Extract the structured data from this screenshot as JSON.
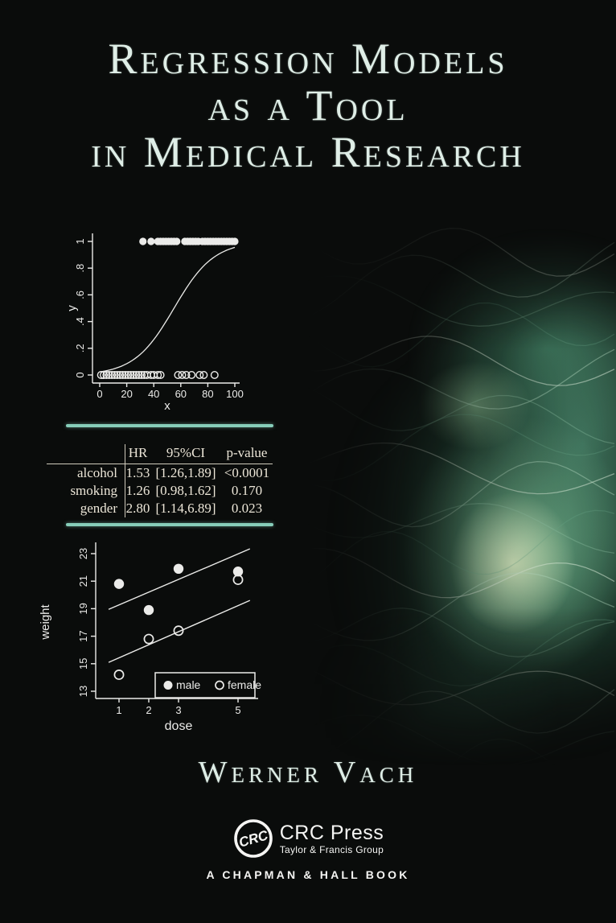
{
  "cover": {
    "title_lines": [
      "Regression Models",
      "as a Tool",
      "in Medical Research"
    ],
    "author": "Werner Vach",
    "publisher": {
      "logo_text": "CRC",
      "name": "CRC Press",
      "group": "Taylor & Francis Group",
      "imprint": "A CHAPMAN & HALL BOOK"
    },
    "colors": {
      "background": "#0a0c0b",
      "title_text": "#dfeee7",
      "separator": "#86cdb9",
      "plot_ink": "#ebebe9",
      "table_text": "#ece6d8",
      "publisher_text": "#f5f5f3",
      "art_green_bright": "#ddeec3",
      "art_green_mid": "#76b28c",
      "art_green_dark": "#2f6a50"
    }
  },
  "table": {
    "columns": [
      "",
      "HR",
      "95%CI",
      "p-value"
    ],
    "rows": [
      [
        "alcohol",
        "1.53",
        "[1.26,1.89]",
        "<0.0001"
      ],
      [
        "smoking",
        "1.26",
        "[0.98,1.62]",
        "0.170"
      ],
      [
        "gender",
        "2.80",
        "[1.14,6.89]",
        "0.023"
      ]
    ]
  },
  "chart_data": [
    {
      "id": "logistic-plot",
      "type": "scatter",
      "title": "",
      "xlabel": "x",
      "ylabel": "y",
      "xlim": [
        0,
        100
      ],
      "ylim": [
        0,
        1
      ],
      "xticks": [
        0,
        20,
        40,
        60,
        80,
        100
      ],
      "yticks": [
        {
          "v": 0,
          "label": "0"
        },
        {
          "v": 0.2,
          "label": ".2"
        },
        {
          "v": 0.4,
          "label": ".4"
        },
        {
          "v": 0.6,
          "label": ".6"
        },
        {
          "v": 0.8,
          "label": ".8"
        },
        {
          "v": 1,
          "label": "1"
        }
      ],
      "grid": false,
      "series": [
        {
          "name": "outcome y=1",
          "marker": "filled",
          "y": 1,
          "x": [
            32,
            38,
            43,
            45,
            47,
            49,
            51,
            53,
            55,
            57,
            63,
            65,
            67,
            69,
            71,
            73,
            76,
            78,
            80,
            82,
            84,
            86,
            88,
            90,
            92,
            94,
            96,
            98,
            100
          ]
        },
        {
          "name": "outcome y=0",
          "marker": "open",
          "y": 0,
          "x": [
            1,
            3,
            5,
            7,
            9,
            11,
            13,
            15,
            17,
            19,
            21,
            23,
            25,
            27,
            29,
            31,
            33,
            35,
            38,
            40,
            43,
            45,
            58,
            61,
            64,
            68,
            74,
            77,
            85
          ]
        }
      ],
      "curve": {
        "name": "fitted logistic curve",
        "type": "logistic",
        "midpoint": 55,
        "slope": 0.068,
        "x_range": [
          0,
          100
        ]
      }
    },
    {
      "id": "dose-weight-plot",
      "type": "scatter",
      "title": "",
      "xlabel": "dose",
      "ylabel": "weight",
      "xlim": [
        0.5,
        5.5
      ],
      "ylim": [
        12.5,
        23.8
      ],
      "xticks": [
        1,
        2,
        3,
        5
      ],
      "yticks": [
        13,
        15,
        17,
        19,
        21,
        23
      ],
      "grid": false,
      "series": [
        {
          "name": "male",
          "marker": "filled",
          "points": [
            [
              1,
              20.8
            ],
            [
              2,
              18.9
            ],
            [
              3,
              21.9
            ],
            [
              5,
              21.7
            ]
          ]
        },
        {
          "name": "female",
          "marker": "open",
          "points": [
            [
              1,
              14.2
            ],
            [
              2,
              16.8
            ],
            [
              3,
              17.4
            ],
            [
              5,
              21.1
            ]
          ]
        }
      ],
      "fit_lines": [
        {
          "name": "male fit",
          "from": [
            0.65,
            18.95
          ],
          "to": [
            5.4,
            23.35
          ]
        },
        {
          "name": "female fit",
          "from": [
            0.65,
            15.1
          ],
          "to": [
            5.4,
            19.6
          ]
        }
      ],
      "legend": {
        "position": "bottom-right",
        "items": [
          {
            "marker": "filled",
            "label": "male"
          },
          {
            "marker": "open",
            "label": "female"
          }
        ]
      }
    }
  ]
}
